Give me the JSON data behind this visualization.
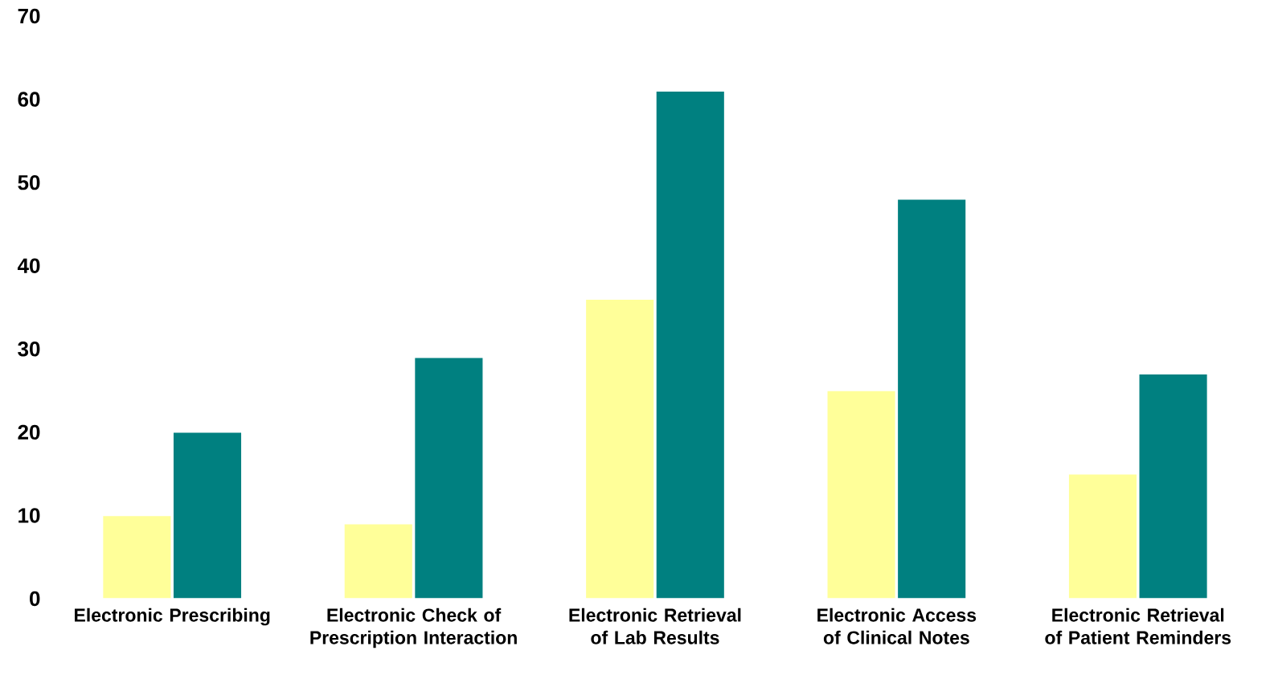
{
  "chart_data": {
    "type": "bar",
    "categories": [
      "Electronic Prescribing",
      "Electronic Check of Prescription Interaction",
      "Electronic Retrieval of Lab Results",
      "Electronic Access of Clinical Notes",
      "Electronic Retrieval of Patient Reminders"
    ],
    "series": [
      {
        "color": "#ffff99",
        "values": [
          10,
          9,
          36,
          25,
          15
        ]
      },
      {
        "color": "#008080",
        "values": [
          20,
          29,
          61,
          48,
          27
        ]
      }
    ],
    "ylim": [
      0,
      70
    ],
    "yticks": [
      0,
      10,
      20,
      30,
      40,
      50,
      60,
      70
    ]
  }
}
